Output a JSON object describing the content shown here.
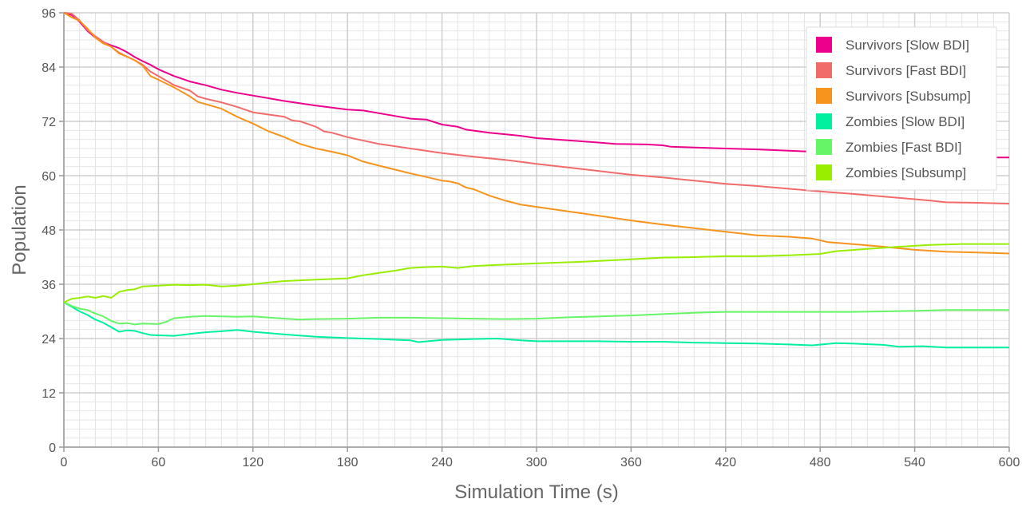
{
  "chart_data": {
    "type": "line",
    "xlabel": "Simulation Time (s)",
    "ylabel": "Population",
    "xlim": [
      0,
      600
    ],
    "ylim": [
      0,
      96
    ],
    "xticks": [
      0,
      60,
      120,
      180,
      240,
      300,
      360,
      420,
      480,
      540,
      600
    ],
    "yticks": [
      0,
      12,
      24,
      36,
      48,
      60,
      72,
      84,
      96
    ],
    "xtick_labels": [
      "0",
      "60",
      "120",
      "180",
      "240",
      "300",
      "360",
      "420",
      "480",
      "540",
      "600"
    ],
    "ytick_labels": [
      "0",
      "12",
      "24",
      "36",
      "48",
      "60",
      "72",
      "84",
      "96"
    ],
    "grid": true,
    "legend_position": "top-right",
    "series": [
      {
        "name": "Survivors [Slow BDI]",
        "color": "#ec008c",
        "points": [
          [
            0,
            96
          ],
          [
            5,
            95.5
          ],
          [
            10,
            94
          ],
          [
            15,
            92
          ],
          [
            20,
            90.5
          ],
          [
            25,
            89.5
          ],
          [
            30,
            88.8
          ],
          [
            35,
            88.2
          ],
          [
            40,
            87.3
          ],
          [
            45,
            86.2
          ],
          [
            50,
            85.3
          ],
          [
            55,
            84.5
          ],
          [
            60,
            83.5
          ],
          [
            70,
            82
          ],
          [
            80,
            80.8
          ],
          [
            90,
            80
          ],
          [
            100,
            79
          ],
          [
            110,
            78.3
          ],
          [
            120,
            77.7
          ],
          [
            140,
            76.5
          ],
          [
            160,
            75.5
          ],
          [
            180,
            74.6
          ],
          [
            190,
            74.4
          ],
          [
            200,
            73.8
          ],
          [
            220,
            72.6
          ],
          [
            230,
            72.4
          ],
          [
            240,
            71.3
          ],
          [
            250,
            70.8
          ],
          [
            255,
            70.2
          ],
          [
            270,
            69.5
          ],
          [
            290,
            68.8
          ],
          [
            300,
            68.3
          ],
          [
            320,
            67.8
          ],
          [
            340,
            67.3
          ],
          [
            350,
            67
          ],
          [
            370,
            66.9
          ],
          [
            380,
            66.7
          ],
          [
            385,
            66.4
          ],
          [
            420,
            66
          ],
          [
            440,
            65.8
          ],
          [
            460,
            65.5
          ],
          [
            480,
            65.2
          ],
          [
            500,
            64.8
          ],
          [
            520,
            64.5
          ],
          [
            540,
            64.2
          ],
          [
            560,
            64.1
          ],
          [
            580,
            64
          ],
          [
            600,
            64
          ]
        ]
      },
      {
        "name": "Survivors [Fast BDI]",
        "color": "#f26b6b",
        "points": [
          [
            0,
            96
          ],
          [
            5,
            95.8
          ],
          [
            10,
            94.3
          ],
          [
            15,
            92.2
          ],
          [
            20,
            90.8
          ],
          [
            25,
            89.6
          ],
          [
            30,
            88.5
          ],
          [
            35,
            87.2
          ],
          [
            40,
            86.3
          ],
          [
            45,
            85.5
          ],
          [
            50,
            84.5
          ],
          [
            55,
            83
          ],
          [
            60,
            82
          ],
          [
            65,
            81
          ],
          [
            70,
            80
          ],
          [
            80,
            78.8
          ],
          [
            85,
            77.5
          ],
          [
            90,
            77
          ],
          [
            100,
            76.2
          ],
          [
            110,
            75.2
          ],
          [
            120,
            74
          ],
          [
            130,
            73.5
          ],
          [
            140,
            73
          ],
          [
            145,
            72.2
          ],
          [
            150,
            72
          ],
          [
            160,
            70.8
          ],
          [
            165,
            69.8
          ],
          [
            170,
            69.5
          ],
          [
            180,
            68.5
          ],
          [
            200,
            67
          ],
          [
            220,
            66
          ],
          [
            240,
            65
          ],
          [
            260,
            64.2
          ],
          [
            280,
            63.5
          ],
          [
            300,
            62.6
          ],
          [
            320,
            61.8
          ],
          [
            340,
            61
          ],
          [
            360,
            60.2
          ],
          [
            380,
            59.6
          ],
          [
            400,
            58.9
          ],
          [
            420,
            58.2
          ],
          [
            440,
            57.7
          ],
          [
            460,
            57.1
          ],
          [
            480,
            56.5
          ],
          [
            500,
            56
          ],
          [
            520,
            55.4
          ],
          [
            540,
            54.8
          ],
          [
            550,
            54.5
          ],
          [
            560,
            54.1
          ],
          [
            580,
            54
          ],
          [
            600,
            53.8
          ]
        ]
      },
      {
        "name": "Survivors [Subsump]",
        "color": "#f7941d",
        "points": [
          [
            0,
            96
          ],
          [
            5,
            95
          ],
          [
            10,
            94.2
          ],
          [
            15,
            92.5
          ],
          [
            20,
            90.5
          ],
          [
            25,
            89.2
          ],
          [
            30,
            88.5
          ],
          [
            35,
            87
          ],
          [
            40,
            86.3
          ],
          [
            45,
            85.5
          ],
          [
            50,
            84.3
          ],
          [
            55,
            82
          ],
          [
            60,
            81.2
          ],
          [
            70,
            79.5
          ],
          [
            80,
            77.5
          ],
          [
            85,
            76.3
          ],
          [
            90,
            75.8
          ],
          [
            100,
            74.8
          ],
          [
            110,
            73
          ],
          [
            120,
            71.5
          ],
          [
            130,
            69.8
          ],
          [
            140,
            68.5
          ],
          [
            150,
            67
          ],
          [
            160,
            66
          ],
          [
            170,
            65.3
          ],
          [
            180,
            64.5
          ],
          [
            190,
            63.1
          ],
          [
            200,
            62.2
          ],
          [
            220,
            60.5
          ],
          [
            230,
            59.7
          ],
          [
            240,
            58.9
          ],
          [
            245,
            58.7
          ],
          [
            250,
            58.3
          ],
          [
            255,
            57.4
          ],
          [
            260,
            57
          ],
          [
            270,
            55.6
          ],
          [
            280,
            54.5
          ],
          [
            290,
            53.6
          ],
          [
            300,
            53.1
          ],
          [
            320,
            52.1
          ],
          [
            340,
            51.1
          ],
          [
            360,
            50.1
          ],
          [
            380,
            49.2
          ],
          [
            400,
            48.4
          ],
          [
            420,
            47.6
          ],
          [
            430,
            47.2
          ],
          [
            440,
            46.8
          ],
          [
            460,
            46.5
          ],
          [
            475,
            46.1
          ],
          [
            485,
            45.3
          ],
          [
            500,
            44.9
          ],
          [
            520,
            44.3
          ],
          [
            540,
            43.6
          ],
          [
            560,
            43.2
          ],
          [
            580,
            43
          ],
          [
            600,
            42.8
          ]
        ]
      },
      {
        "name": "Zombies [Slow BDI]",
        "color": "#00f0a0",
        "points": [
          [
            0,
            32
          ],
          [
            5,
            31
          ],
          [
            10,
            30
          ],
          [
            15,
            29.2
          ],
          [
            20,
            28.2
          ],
          [
            25,
            27.5
          ],
          [
            30,
            26.5
          ],
          [
            35,
            25.5
          ],
          [
            40,
            25.8
          ],
          [
            45,
            25.7
          ],
          [
            50,
            25.2
          ],
          [
            55,
            24.8
          ],
          [
            60,
            24.7
          ],
          [
            70,
            24.6
          ],
          [
            80,
            25
          ],
          [
            90,
            25.4
          ],
          [
            100,
            25.6
          ],
          [
            110,
            25.9
          ],
          [
            120,
            25.5
          ],
          [
            140,
            24.9
          ],
          [
            160,
            24.4
          ],
          [
            180,
            24.1
          ],
          [
            200,
            23.9
          ],
          [
            220,
            23.6
          ],
          [
            225,
            23.2
          ],
          [
            240,
            23.7
          ],
          [
            260,
            23.9
          ],
          [
            275,
            24
          ],
          [
            290,
            23.6
          ],
          [
            300,
            23.4
          ],
          [
            320,
            23.4
          ],
          [
            340,
            23.4
          ],
          [
            360,
            23.3
          ],
          [
            380,
            23.3
          ],
          [
            400,
            23.1
          ],
          [
            420,
            23
          ],
          [
            440,
            22.9
          ],
          [
            460,
            22.7
          ],
          [
            475,
            22.5
          ],
          [
            490,
            23
          ],
          [
            500,
            22.9
          ],
          [
            520,
            22.6
          ],
          [
            530,
            22.2
          ],
          [
            545,
            22.3
          ],
          [
            560,
            22
          ],
          [
            580,
            22
          ],
          [
            600,
            22
          ]
        ]
      },
      {
        "name": "Zombies [Fast BDI]",
        "color": "#66f566",
        "points": [
          [
            0,
            32
          ],
          [
            5,
            31.2
          ],
          [
            10,
            30.6
          ],
          [
            15,
            30.3
          ],
          [
            20,
            29.5
          ],
          [
            25,
            28.9
          ],
          [
            30,
            27.9
          ],
          [
            35,
            27.3
          ],
          [
            40,
            27.4
          ],
          [
            45,
            27.1
          ],
          [
            50,
            27.3
          ],
          [
            60,
            27.2
          ],
          [
            65,
            27.7
          ],
          [
            70,
            28.5
          ],
          [
            80,
            28.8
          ],
          [
            90,
            29
          ],
          [
            100,
            28.9
          ],
          [
            110,
            28.8
          ],
          [
            120,
            28.9
          ],
          [
            140,
            28.4
          ],
          [
            150,
            28.2
          ],
          [
            160,
            28.3
          ],
          [
            180,
            28.4
          ],
          [
            200,
            28.6
          ],
          [
            220,
            28.6
          ],
          [
            240,
            28.5
          ],
          [
            260,
            28.4
          ],
          [
            280,
            28.3
          ],
          [
            300,
            28.4
          ],
          [
            320,
            28.7
          ],
          [
            340,
            28.9
          ],
          [
            360,
            29.1
          ],
          [
            380,
            29.4
          ],
          [
            400,
            29.7
          ],
          [
            420,
            29.9
          ],
          [
            440,
            29.9
          ],
          [
            460,
            29.9
          ],
          [
            480,
            29.9
          ],
          [
            500,
            29.9
          ],
          [
            520,
            30
          ],
          [
            540,
            30.1
          ],
          [
            560,
            30.3
          ],
          [
            580,
            30.3
          ],
          [
            600,
            30.3
          ]
        ]
      },
      {
        "name": "Zombies [Subsump]",
        "color": "#99ee00",
        "points": [
          [
            0,
            32
          ],
          [
            5,
            32.8
          ],
          [
            10,
            33
          ],
          [
            15,
            33.3
          ],
          [
            20,
            33
          ],
          [
            25,
            33.4
          ],
          [
            30,
            33
          ],
          [
            35,
            34.3
          ],
          [
            40,
            34.7
          ],
          [
            45,
            34.9
          ],
          [
            50,
            35.5
          ],
          [
            60,
            35.7
          ],
          [
            70,
            35.9
          ],
          [
            80,
            35.8
          ],
          [
            90,
            35.9
          ],
          [
            100,
            35.5
          ],
          [
            110,
            35.7
          ],
          [
            120,
            36
          ],
          [
            130,
            36.4
          ],
          [
            140,
            36.7
          ],
          [
            160,
            37
          ],
          [
            180,
            37.3
          ],
          [
            190,
            38
          ],
          [
            200,
            38.5
          ],
          [
            210,
            39
          ],
          [
            220,
            39.6
          ],
          [
            230,
            39.8
          ],
          [
            240,
            39.9
          ],
          [
            250,
            39.6
          ],
          [
            260,
            40
          ],
          [
            270,
            40.2
          ],
          [
            300,
            40.6
          ],
          [
            330,
            41
          ],
          [
            360,
            41.5
          ],
          [
            380,
            41.9
          ],
          [
            400,
            42
          ],
          [
            420,
            42.2
          ],
          [
            440,
            42.2
          ],
          [
            460,
            42.4
          ],
          [
            480,
            42.7
          ],
          [
            490,
            43.3
          ],
          [
            510,
            43.8
          ],
          [
            530,
            44.3
          ],
          [
            550,
            44.7
          ],
          [
            570,
            44.9
          ],
          [
            600,
            44.9
          ]
        ]
      }
    ]
  }
}
